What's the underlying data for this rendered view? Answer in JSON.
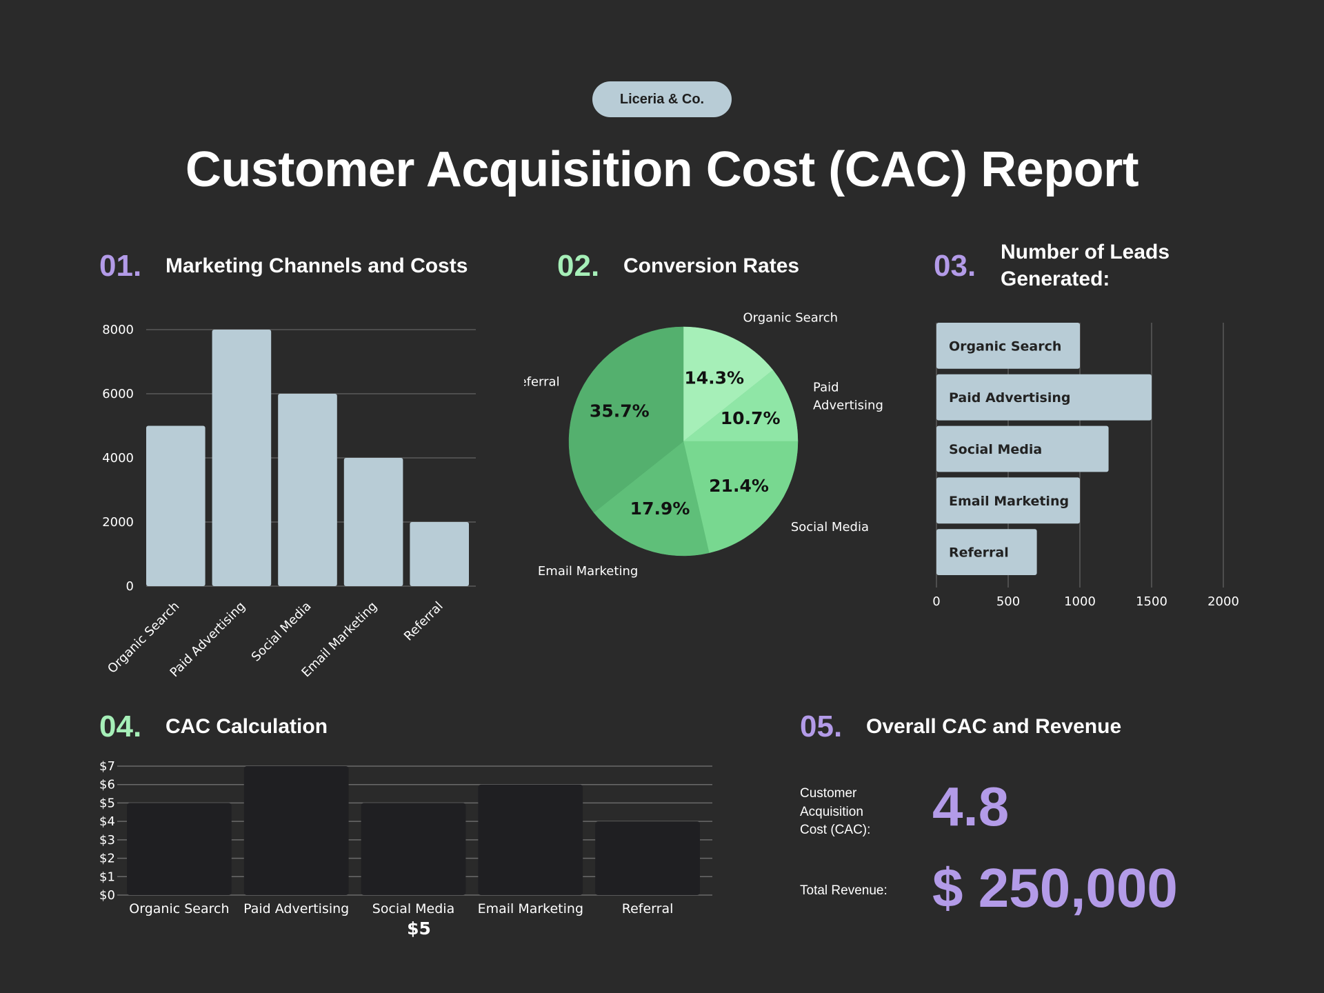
{
  "brand": "Liceria & Co.",
  "title": "Customer Acquisition Cost (CAC) Report",
  "colors": {
    "background": "#2a2a2a",
    "bar_light": "#b8ccd6",
    "bar_dark": "#1f1f22",
    "purple": "#b39be8",
    "green": "#a6efb8",
    "pie": [
      "#a6efb8",
      "#8fe6a6",
      "#78d890",
      "#5fbf79",
      "#54b06e"
    ]
  },
  "sections": {
    "s1": {
      "num": "01.",
      "title": "Marketing Channels and Costs"
    },
    "s2": {
      "num": "02.",
      "title": "Conversion Rates"
    },
    "s3": {
      "num": "03.",
      "title": "Number of Leads Generated:"
    },
    "s4": {
      "num": "04.",
      "title": "CAC Calculation"
    },
    "s5": {
      "num": "05.",
      "title": "Overall CAC and Revenue"
    }
  },
  "chart_data": [
    {
      "id": "marketing-costs",
      "type": "bar",
      "categories": [
        "Organic Search",
        "Paid Advertising",
        "Social Media",
        "Email Marketing",
        "Referral"
      ],
      "values": [
        5000,
        8000,
        6000,
        4000,
        2000
      ],
      "yticks": [
        "0",
        "2000",
        "4000",
        "6000",
        "8000"
      ],
      "ylim": [
        0,
        8000
      ],
      "grid": true
    },
    {
      "id": "conversion-rates",
      "type": "pie",
      "categories": [
        "Organic Search",
        "Paid Advertising",
        "Social Media",
        "Email Marketing",
        "Referral"
      ],
      "label_lines": [
        [
          "Organic Search"
        ],
        [
          "Paid",
          "Advertising"
        ],
        [
          "Social Media"
        ],
        [
          "Email Marketing"
        ],
        [
          "Referral"
        ]
      ],
      "values": [
        14.3,
        10.7,
        21.4,
        17.9,
        35.7
      ],
      "value_labels": [
        "14.3%",
        "10.7%",
        "21.4%",
        "17.9%",
        "35.7%"
      ]
    },
    {
      "id": "leads-generated",
      "type": "bar",
      "orientation": "horizontal",
      "categories": [
        "Organic Search",
        "Paid Advertising",
        "Social Media",
        "Email Marketing",
        "Referral"
      ],
      "values": [
        1000,
        1500,
        1200,
        1000,
        700
      ],
      "xticks": [
        "0",
        "500",
        "1000",
        "1500",
        "2000"
      ],
      "xlim": [
        0,
        2000
      ],
      "grid": true
    },
    {
      "id": "cac-calculation",
      "type": "bar",
      "categories": [
        "Organic Search",
        "Paid Advertising",
        "Social Media",
        "Email Marketing",
        "Referral"
      ],
      "values": [
        5,
        7,
        5,
        6,
        4
      ],
      "yticks": [
        "$0",
        "$1",
        "$2",
        "$3",
        "$4",
        "$5",
        "$6",
        "$7"
      ],
      "ylim": [
        0,
        7
      ],
      "annotation": "$5",
      "grid": true
    }
  ],
  "overall": {
    "cac_label": [
      "Customer",
      "Acquisition",
      "Cost (CAC):"
    ],
    "cac_value": "4.8",
    "revenue_label": "Total Revenue:",
    "revenue_value": "$ 250,000"
  }
}
